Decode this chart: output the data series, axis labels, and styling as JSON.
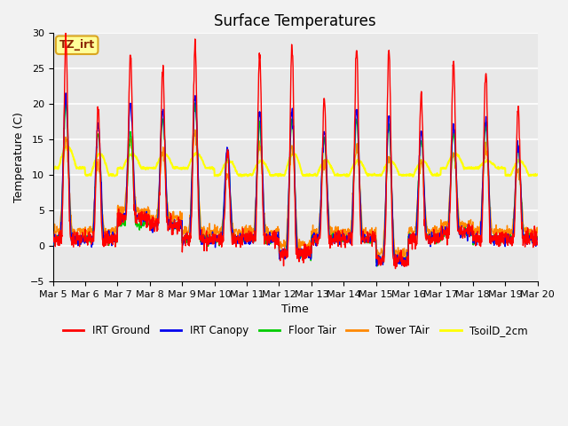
{
  "title": "Surface Temperatures",
  "ylabel": "Temperature (C)",
  "xlabel": "Time",
  "ylim": [
    -5,
    30
  ],
  "xtick_labels": [
    "Mar 5",
    "Mar 6",
    "Mar 7",
    "Mar 8",
    "Mar 9",
    "Mar 10",
    "Mar 11",
    "Mar 12",
    "Mar 13",
    "Mar 14",
    "Mar 15",
    "Mar 16",
    "Mar 17",
    "Mar 18",
    "Mar 19",
    "Mar 20"
  ],
  "annotation_text": "TZ_irt",
  "series_colors": {
    "IRT Ground": "#FF0000",
    "IRT Canopy": "#0000EE",
    "Floor Tair": "#00CC00",
    "Tower TAir": "#FF8800",
    "TsoilD_2cm": "#FFFF00"
  },
  "legend_labels": [
    "IRT Ground",
    "IRT Canopy",
    "Floor Tair",
    "Tower TAir",
    "TsoilD_2cm"
  ],
  "background_color": "#E8E8E8",
  "grid_color": "#FFFFFF",
  "title_fontsize": 12,
  "axis_fontsize": 9,
  "tick_fontsize": 8,
  "n_days": 15,
  "points_per_day": 96,
  "fig_facecolor": "#F2F2F2"
}
